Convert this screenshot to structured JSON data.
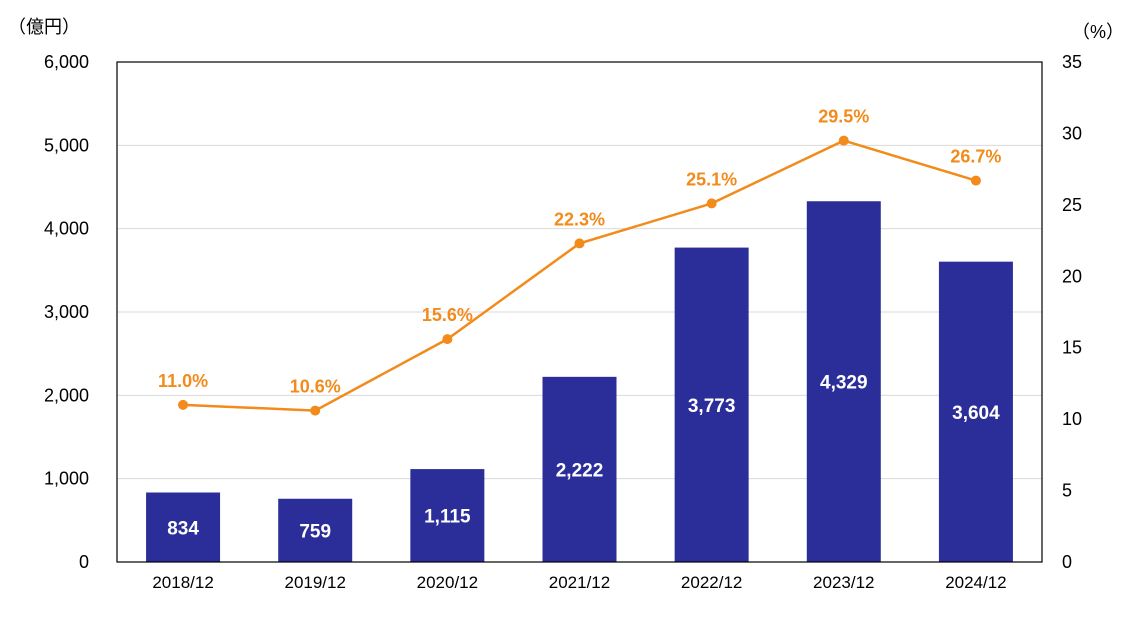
{
  "chart_data": {
    "type": "bar",
    "categories": [
      "2018/12",
      "2019/12",
      "2020/12",
      "2021/12",
      "2022/12",
      "2023/12",
      "2024/12"
    ],
    "series": [
      {
        "name": "bars",
        "type": "bar",
        "axis": "left",
        "values": [
          834,
          759,
          1115,
          2222,
          3773,
          4329,
          3604
        ],
        "labels": [
          "834",
          "759",
          "1,115",
          "2,222",
          "3,773",
          "4,329",
          "3,604"
        ]
      },
      {
        "name": "ratio",
        "type": "line",
        "axis": "right",
        "values": [
          11.0,
          10.6,
          15.6,
          22.3,
          25.1,
          29.5,
          26.7
        ],
        "labels": [
          "11.0%",
          "10.6%",
          "15.6%",
          "22.3%",
          "25.1%",
          "29.5%",
          "26.7%"
        ]
      }
    ],
    "left_axis": {
      "unit_label": "（億円）",
      "ylim": [
        0,
        6000
      ],
      "ticks": [
        0,
        1000,
        2000,
        3000,
        4000,
        5000,
        6000
      ],
      "tick_labels": [
        "0",
        "1,000",
        "2,000",
        "3,000",
        "4,000",
        "5,000",
        "6,000"
      ]
    },
    "right_axis": {
      "unit_label": "（%）",
      "ylim": [
        0,
        35
      ],
      "ticks": [
        0,
        5,
        10,
        15,
        20,
        25,
        30,
        35
      ],
      "tick_labels": [
        "0",
        "5",
        "10",
        "15",
        "20",
        "25",
        "30",
        "35"
      ]
    },
    "grid": true
  },
  "colors": {
    "bar": "#2b2e99",
    "line": "#f28b1c",
    "grid": "#d9d9d9",
    "frame": "#000000"
  }
}
